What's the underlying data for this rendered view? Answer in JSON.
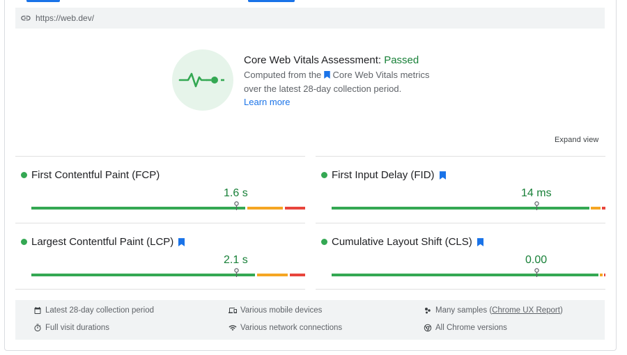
{
  "url": "https://web.dev/",
  "assessment": {
    "title": "Core Web Vitals Assessment: ",
    "status": "Passed",
    "desc_part1": "Computed from the",
    "desc_part2": "Core Web Vitals metrics",
    "desc_line2": "over the latest 28-day collection period.",
    "learn_more": "Learn more"
  },
  "expand_view": "Expand view",
  "metrics": [
    {
      "name": "First Contentful Paint (FCP)",
      "value": "1.6 s",
      "core": false,
      "position_fraction": 0.75
    },
    {
      "name": "First Input Delay (FID)",
      "value": "14 ms",
      "core": true,
      "position_fraction": 0.75
    },
    {
      "name": "Largest Contentful Paint (LCP)",
      "value": "2.1 s",
      "core": true,
      "position_fraction": 0.75
    },
    {
      "name": "Cumulative Layout Shift (CLS)",
      "value": "0.00",
      "core": true,
      "position_fraction": 0.75
    }
  ],
  "footer": {
    "period": "Latest 28-day collection period",
    "devices": "Various mobile devices",
    "samples_prefix": "Many samples (",
    "samples_link": "Chrome UX Report",
    "samples_suffix": ")",
    "durations": "Full visit durations",
    "network": "Various network connections",
    "versions": "All Chrome versions"
  },
  "colors": {
    "good": "#34a853",
    "needs_improvement": "#f5a623",
    "poor": "#e8453c",
    "link": "#1a73e8"
  }
}
